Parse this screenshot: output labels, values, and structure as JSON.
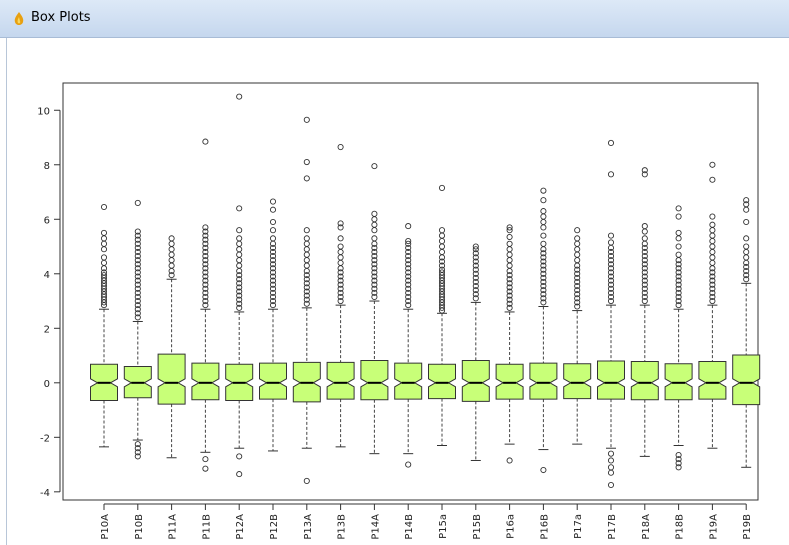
{
  "window": {
    "title": "Box Plots",
    "icon": "app-icon"
  },
  "chart_data": {
    "type": "boxplot",
    "notched": true,
    "ylim": [
      -4.3,
      11
    ],
    "yticks": [
      -4,
      -2,
      0,
      2,
      4,
      6,
      8,
      10
    ],
    "box_color": "#c8ff78",
    "categories": [
      "P10A",
      "P10B",
      "P11A",
      "P11B",
      "P12A",
      "P12B",
      "P13A",
      "P13B",
      "P14A",
      "P14B",
      "P15a",
      "P15B",
      "P16a",
      "P16B",
      "P17a",
      "P17B",
      "P18A",
      "P18B",
      "P19A",
      "P19B"
    ],
    "boxes": [
      {
        "whislo": -2.35,
        "q1": -0.65,
        "med": 0,
        "q3": 0.68,
        "whishi": 2.7,
        "outliers_hi": [
          2.85,
          2.95,
          3.05,
          3.15,
          3.25,
          3.35,
          3.45,
          3.55,
          3.65,
          3.75,
          3.85,
          3.95,
          4.05,
          4.2,
          4.4,
          4.6,
          4.9,
          5.1,
          5.3,
          5.5,
          6.45
        ],
        "outliers_lo": []
      },
      {
        "whislo": -2.1,
        "q1": -0.55,
        "med": 0,
        "q3": 0.6,
        "whishi": 2.25,
        "outliers_hi": [
          2.4,
          2.55,
          2.7,
          2.85,
          3.0,
          3.15,
          3.3,
          3.45,
          3.6,
          3.75,
          3.9,
          4.05,
          4.2,
          4.35,
          4.5,
          4.65,
          4.8,
          4.95,
          5.1,
          5.25,
          5.4,
          5.55,
          6.6
        ],
        "outliers_lo": [
          -2.25,
          -2.4,
          -2.55,
          -2.7
        ]
      },
      {
        "whislo": -2.75,
        "q1": -0.78,
        "med": 0,
        "q3": 1.05,
        "whishi": 3.8,
        "outliers_hi": [
          3.95,
          4.1,
          4.3,
          4.5,
          4.7,
          4.9,
          5.1,
          5.3
        ],
        "outliers_lo": []
      },
      {
        "whislo": -2.55,
        "q1": -0.62,
        "med": 0,
        "q3": 0.72,
        "whishi": 2.7,
        "outliers_hi": [
          2.85,
          3.0,
          3.15,
          3.3,
          3.45,
          3.6,
          3.75,
          3.9,
          4.05,
          4.2,
          4.35,
          4.5,
          4.65,
          4.8,
          4.95,
          5.1,
          5.25,
          5.4,
          5.55,
          5.7,
          8.85
        ],
        "outliers_lo": [
          -2.8,
          -3.15
        ]
      },
      {
        "whislo": -2.4,
        "q1": -0.65,
        "med": 0,
        "q3": 0.68,
        "whishi": 2.6,
        "outliers_hi": [
          2.75,
          2.9,
          3.05,
          3.2,
          3.35,
          3.5,
          3.65,
          3.8,
          3.95,
          4.1,
          4.3,
          4.5,
          4.7,
          4.9,
          5.1,
          5.3,
          5.6,
          6.4,
          10.5
        ],
        "outliers_lo": [
          -2.7,
          -3.35
        ]
      },
      {
        "whislo": -2.5,
        "q1": -0.6,
        "med": 0,
        "q3": 0.72,
        "whishi": 2.7,
        "outliers_hi": [
          2.85,
          3.0,
          3.15,
          3.3,
          3.45,
          3.6,
          3.75,
          3.9,
          4.05,
          4.2,
          4.35,
          4.5,
          4.65,
          4.8,
          4.95,
          5.1,
          5.3,
          5.6,
          5.9,
          6.35,
          6.65
        ],
        "outliers_lo": []
      },
      {
        "whislo": -2.4,
        "q1": -0.7,
        "med": 0,
        "q3": 0.75,
        "whishi": 2.75,
        "outliers_hi": [
          2.9,
          3.05,
          3.2,
          3.35,
          3.5,
          3.65,
          3.8,
          3.95,
          4.1,
          4.3,
          4.5,
          4.7,
          4.9,
          5.1,
          5.3,
          5.6,
          7.5,
          8.1,
          9.65
        ],
        "outliers_lo": [
          -3.6
        ]
      },
      {
        "whislo": -2.35,
        "q1": -0.6,
        "med": 0,
        "q3": 0.75,
        "whishi": 2.85,
        "outliers_hi": [
          3.0,
          3.15,
          3.3,
          3.45,
          3.6,
          3.75,
          3.9,
          4.05,
          4.2,
          4.4,
          4.6,
          4.8,
          5.0,
          5.3,
          5.7,
          5.85,
          8.65
        ],
        "outliers_lo": []
      },
      {
        "whislo": -2.6,
        "q1": -0.62,
        "med": 0,
        "q3": 0.82,
        "whishi": 3.0,
        "outliers_hi": [
          3.15,
          3.3,
          3.45,
          3.6,
          3.75,
          3.9,
          4.05,
          4.2,
          4.35,
          4.5,
          4.65,
          4.8,
          4.95,
          5.1,
          5.3,
          5.6,
          5.8,
          6.0,
          6.2,
          7.95
        ],
        "outliers_lo": []
      },
      {
        "whislo": -2.6,
        "q1": -0.6,
        "med": 0,
        "q3": 0.72,
        "whishi": 2.7,
        "outliers_hi": [
          2.85,
          3.0,
          3.15,
          3.3,
          3.45,
          3.6,
          3.75,
          3.9,
          4.05,
          4.2,
          4.35,
          4.5,
          4.65,
          4.8,
          4.95,
          5.1,
          5.2,
          5.75
        ],
        "outliers_lo": [
          -3.0
        ]
      },
      {
        "whislo": -2.3,
        "q1": -0.58,
        "med": 0,
        "q3": 0.68,
        "whishi": 2.55,
        "outliers_hi": [
          2.65,
          2.75,
          2.85,
          2.95,
          3.05,
          3.15,
          3.25,
          3.35,
          3.45,
          3.55,
          3.65,
          3.75,
          3.85,
          3.95,
          4.05,
          4.15,
          4.3,
          4.45,
          4.6,
          4.8,
          5.0,
          5.2,
          5.4,
          5.6,
          7.15
        ],
        "outliers_lo": []
      },
      {
        "whislo": -2.85,
        "q1": -0.68,
        "med": 0,
        "q3": 0.82,
        "whishi": 2.95,
        "outliers_hi": [
          3.1,
          3.25,
          3.4,
          3.55,
          3.7,
          3.85,
          4.0,
          4.15,
          4.3,
          4.45,
          4.6,
          4.75,
          4.9,
          5.0
        ],
        "outliers_lo": []
      },
      {
        "whislo": -2.25,
        "q1": -0.6,
        "med": 0,
        "q3": 0.68,
        "whishi": 2.6,
        "outliers_hi": [
          2.75,
          2.9,
          3.05,
          3.2,
          3.35,
          3.5,
          3.65,
          3.8,
          3.95,
          4.1,
          4.3,
          4.5,
          4.7,
          4.9,
          5.1,
          5.35,
          5.6,
          5.7
        ],
        "outliers_lo": [
          -2.85
        ]
      },
      {
        "whislo": -2.45,
        "q1": -0.6,
        "med": 0,
        "q3": 0.72,
        "whishi": 2.8,
        "outliers_hi": [
          2.95,
          3.1,
          3.25,
          3.4,
          3.55,
          3.7,
          3.85,
          4.0,
          4.15,
          4.3,
          4.45,
          4.6,
          4.75,
          4.9,
          5.1,
          5.4,
          5.7,
          5.9,
          6.1,
          6.3,
          6.7,
          7.05
        ],
        "outliers_lo": [
          -3.2
        ]
      },
      {
        "whislo": -2.25,
        "q1": -0.58,
        "med": 0,
        "q3": 0.7,
        "whishi": 2.65,
        "outliers_hi": [
          2.8,
          2.95,
          3.1,
          3.25,
          3.4,
          3.55,
          3.7,
          3.85,
          4.0,
          4.15,
          4.3,
          4.5,
          4.7,
          4.9,
          5.1,
          5.3,
          5.6
        ],
        "outliers_lo": []
      },
      {
        "whislo": -2.4,
        "q1": -0.6,
        "med": 0,
        "q3": 0.8,
        "whishi": 2.85,
        "outliers_hi": [
          3.0,
          3.15,
          3.3,
          3.45,
          3.6,
          3.75,
          3.9,
          4.05,
          4.2,
          4.35,
          4.5,
          4.65,
          4.8,
          4.95,
          5.15,
          5.4,
          7.65,
          8.8
        ],
        "outliers_lo": [
          -2.6,
          -2.85,
          -3.1,
          -3.3,
          -3.75
        ]
      },
      {
        "whislo": -2.7,
        "q1": -0.62,
        "med": 0,
        "q3": 0.78,
        "whishi": 2.85,
        "outliers_hi": [
          3.0,
          3.15,
          3.3,
          3.45,
          3.6,
          3.75,
          3.9,
          4.05,
          4.2,
          4.35,
          4.5,
          4.65,
          4.8,
          4.95,
          5.1,
          5.3,
          5.55,
          5.75,
          7.65,
          7.8
        ],
        "outliers_lo": []
      },
      {
        "whislo": -2.3,
        "q1": -0.62,
        "med": 0,
        "q3": 0.7,
        "whishi": 2.7,
        "outliers_hi": [
          2.85,
          3.0,
          3.15,
          3.3,
          3.45,
          3.6,
          3.75,
          3.9,
          4.05,
          4.2,
          4.35,
          4.5,
          4.7,
          5.0,
          5.3,
          5.5,
          6.1,
          6.4
        ],
        "outliers_lo": [
          -2.65,
          -2.8,
          -2.95,
          -3.1
        ]
      },
      {
        "whislo": -2.4,
        "q1": -0.6,
        "med": 0,
        "q3": 0.78,
        "whishi": 2.85,
        "outliers_hi": [
          3.0,
          3.15,
          3.3,
          3.45,
          3.6,
          3.75,
          3.9,
          4.05,
          4.2,
          4.4,
          4.6,
          4.8,
          5.0,
          5.2,
          5.4,
          5.6,
          5.8,
          6.1,
          7.45,
          8.0
        ],
        "outliers_lo": []
      },
      {
        "whislo": -3.1,
        "q1": -0.8,
        "med": 0,
        "q3": 1.02,
        "whishi": 3.65,
        "outliers_hi": [
          3.8,
          3.95,
          4.1,
          4.25,
          4.4,
          4.6,
          4.8,
          5.0,
          5.3,
          5.9,
          6.35,
          6.55,
          6.7
        ],
        "outliers_lo": []
      }
    ]
  }
}
